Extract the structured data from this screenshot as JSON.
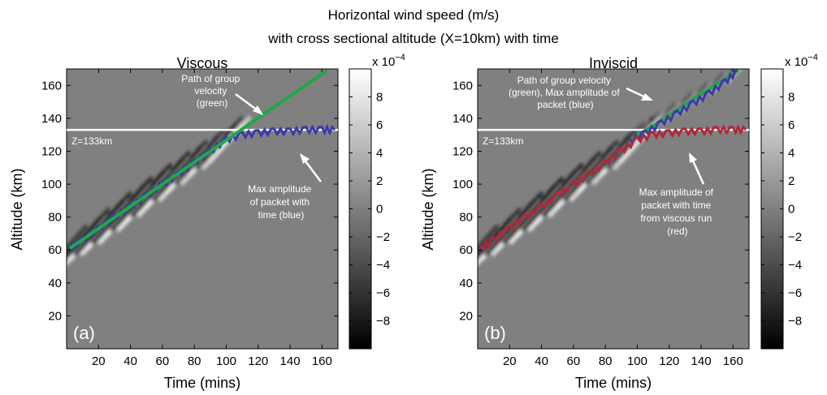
{
  "figure": {
    "title_line1": "Horizontal wind speed (m/s)",
    "title_line2": "with cross sectional altitude (X=10km) with time"
  },
  "chart_data": [
    {
      "type": "heatmap",
      "panel_label": "(a)",
      "title": "Viscous",
      "xlabel": "Time (mins)",
      "ylabel": "Altitude (km)",
      "xlim": [
        0,
        170
      ],
      "ylim": [
        0,
        170
      ],
      "xticks": [
        20,
        40,
        60,
        80,
        100,
        120,
        140,
        160
      ],
      "yticks": [
        20,
        40,
        60,
        80,
        100,
        120,
        140,
        160
      ],
      "colorbar": {
        "multiplier": "x 10",
        "exponent": "−4",
        "range": [
          -10,
          10
        ],
        "ticks": [
          -8,
          -6,
          -4,
          -2,
          0,
          2,
          4,
          6,
          8
        ],
        "tick_labels": [
          "−8",
          "−6",
          "−4",
          "−2",
          "0",
          "2",
          "4",
          "6",
          "8"
        ]
      },
      "reference_line": {
        "label": "Z=133km",
        "altitude": 133,
        "color": "#ffffff"
      },
      "series": [
        {
          "role": "group-velocity-path",
          "color": "#1fa84a",
          "x": [
            2,
            163
          ],
          "y": [
            61,
            169
          ]
        },
        {
          "role": "max-amplitude",
          "color": "#3a3aa8",
          "x": [
            2,
            10,
            20,
            30,
            40,
            50,
            60,
            70,
            80,
            90,
            100,
            110,
            120,
            130,
            140,
            150,
            160,
            168
          ],
          "y": [
            61,
            66,
            73,
            80,
            86,
            93,
            100,
            106,
            113,
            120,
            127,
            130,
            131,
            132,
            132,
            133,
            133,
            133
          ]
        }
      ],
      "annotations": [
        {
          "text": [
            "Path of group",
            "velocity",
            "(green)"
          ]
        },
        {
          "text": [
            "Max amplitude",
            "of packet with",
            "time (blue)"
          ]
        }
      ]
    },
    {
      "type": "heatmap",
      "panel_label": "(b)",
      "title": "Inviscid",
      "xlabel": "Time (mins)",
      "ylabel": "Altitude (km)",
      "xlim": [
        0,
        170
      ],
      "ylim": [
        0,
        170
      ],
      "xticks": [
        20,
        40,
        60,
        80,
        100,
        120,
        140,
        160
      ],
      "yticks": [
        20,
        40,
        60,
        80,
        100,
        120,
        140,
        160
      ],
      "colorbar": {
        "multiplier": "x 10",
        "exponent": "−4",
        "range": [
          -10,
          10
        ],
        "ticks": [
          -8,
          -6,
          -4,
          -2,
          0,
          2,
          4,
          6,
          8
        ],
        "tick_labels": [
          "−8",
          "−6",
          "−4",
          "−2",
          "0",
          "2",
          "4",
          "6",
          "8"
        ]
      },
      "reference_line": {
        "label": "Z=133km",
        "altitude": 133,
        "color": "#ffffff"
      },
      "series": [
        {
          "role": "group-velocity-path",
          "color": "#1fa84a",
          "x": [
            95,
            163
          ],
          "y": [
            126,
            169
          ]
        },
        {
          "role": "max-amplitude",
          "color": "#3a3aa8",
          "x": [
            95,
            105,
            115,
            125,
            135,
            145,
            155,
            163
          ],
          "y": [
            126,
            131,
            137,
            143,
            149,
            155,
            162,
            169
          ]
        },
        {
          "role": "max-amplitude-viscous-run",
          "color": "#b0283a",
          "x": [
            2,
            10,
            20,
            30,
            40,
            50,
            60,
            70,
            80,
            90,
            100,
            110,
            120,
            130,
            140,
            150,
            160,
            168
          ],
          "y": [
            61,
            66,
            73,
            80,
            86,
            93,
            100,
            106,
            113,
            120,
            127,
            130,
            131,
            132,
            132,
            133,
            133,
            133
          ]
        }
      ],
      "annotations": [
        {
          "text": [
            "Path of group velocity",
            "(green), Max amplitude of",
            "packet (blue)"
          ]
        },
        {
          "text": [
            "Max amplitude of",
            "packet with time",
            "from viscous run",
            "(red)"
          ]
        }
      ]
    }
  ]
}
